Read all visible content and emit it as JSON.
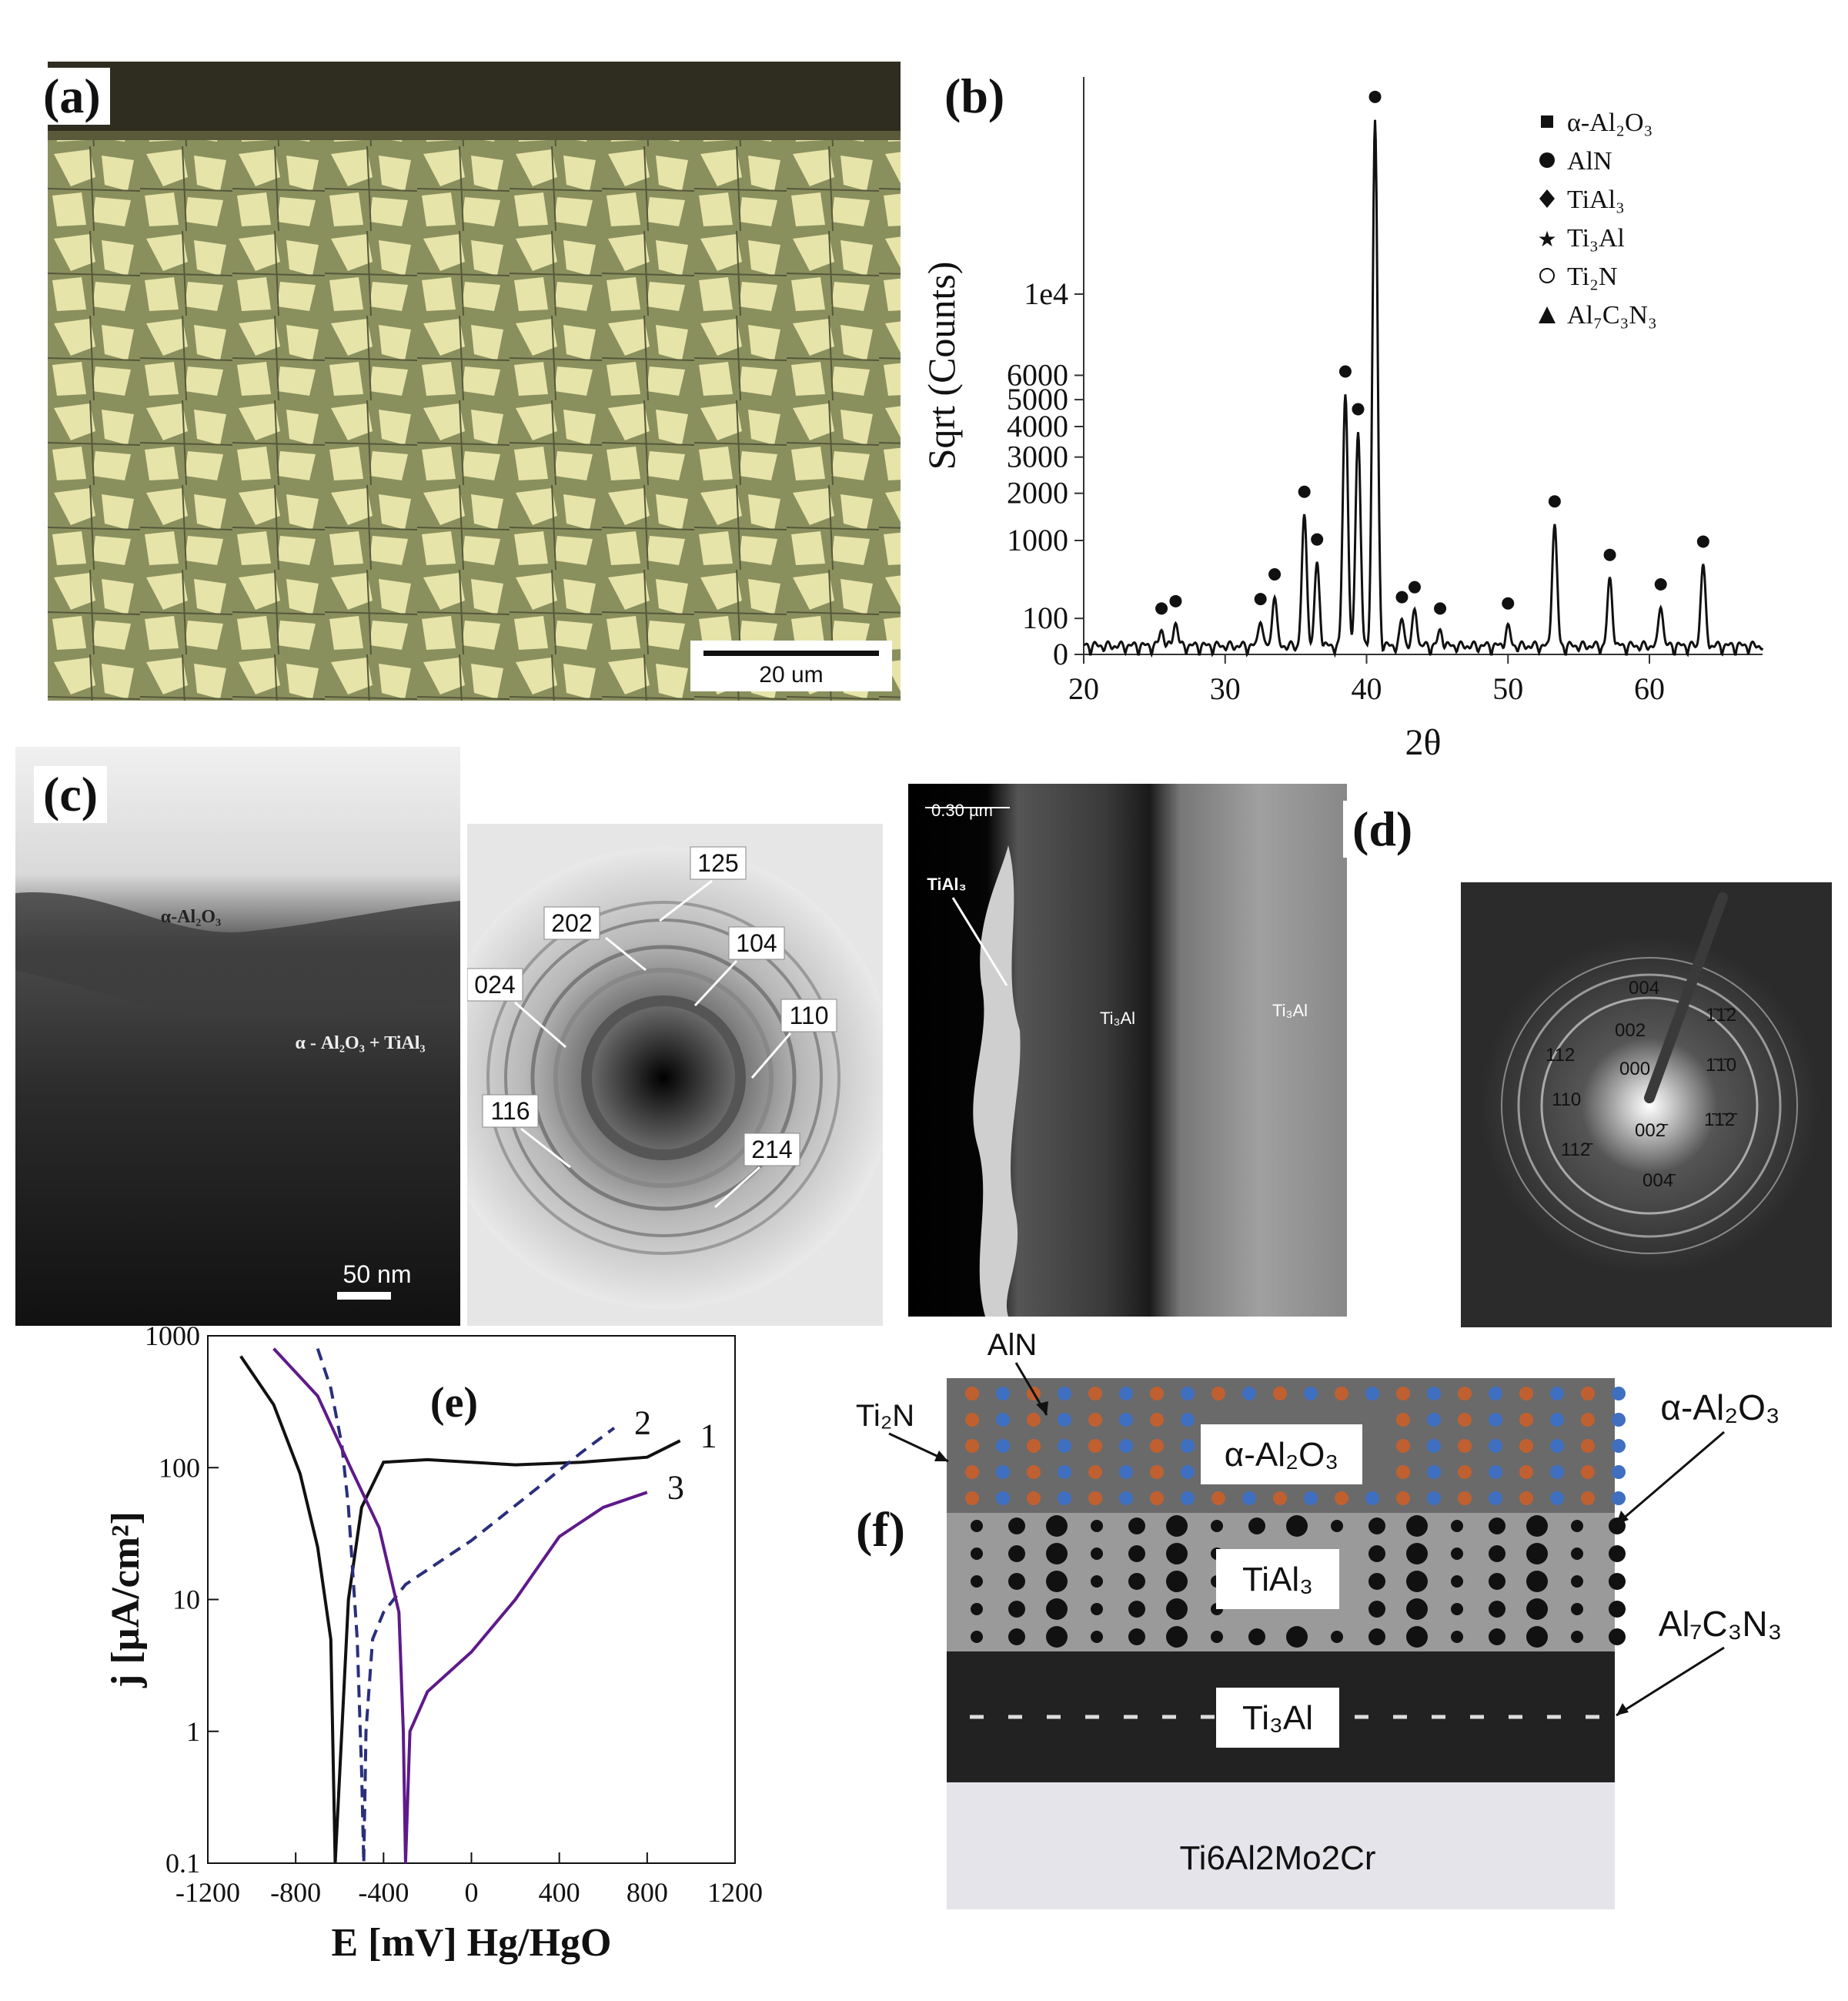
{
  "panels": {
    "a": {
      "label": "(a)",
      "scale_bar": "20 um"
    },
    "b": {
      "label": "(b)"
    },
    "c": {
      "label": "(c)",
      "layer_top": "α-Al₂O₃",
      "layer_mix": "α - Al₂O₃ + TiAl₃",
      "scale_bar": "50 nm",
      "rings": [
        "125",
        "202",
        "104",
        "024",
        "110",
        "116",
        "214"
      ]
    },
    "d": {
      "label": "(d)",
      "scale_bar": "0.30 µm",
      "phase_left": "TiAl₃",
      "phase_mid": "Ti₃Al",
      "phase_right": "Ti₃Al",
      "spots": [
        "004",
        "002",
        "000",
        "110",
        "112",
        "112̄",
        "002̄",
        "004̄",
        "1̄1̄2",
        "1̄1̄0",
        "1̄1̄2̄"
      ]
    },
    "e": {
      "label": "(e)"
    },
    "f": {
      "label": "(f)",
      "layers": [
        "α-Al₂O₃",
        "TiAl₃",
        "Ti₃Al",
        "Ti6Al2Mo2Cr"
      ],
      "callouts": {
        "ain": "AlN",
        "ti2n": "Ti₂N",
        "alumina": "α-Al₂O₃",
        "carbonitride": "Al₇C₃N₃"
      }
    }
  },
  "chart_data": [
    {
      "type": "line",
      "panel": "b",
      "xlabel": "2θ",
      "ylabel": "Sqrt (Counts)",
      "xlim": [
        20,
        68
      ],
      "x_ticks": [
        20,
        30,
        40,
        50,
        60
      ],
      "y_ticks": [
        "0",
        "100",
        "1000",
        "2000",
        "3000",
        "4000",
        "5000",
        "6000",
        "1e4"
      ],
      "legend": [
        "α-Al₂O₃",
        "AlN",
        "TiAl₃",
        "Ti₃Al",
        "Ti₂N",
        "Al₇C₃N₃"
      ],
      "legend_position": "top-right",
      "peaks": [
        {
          "x": 25.5,
          "y": 40
        },
        {
          "x": 26.5,
          "y": 70
        },
        {
          "x": 32.5,
          "y": 80
        },
        {
          "x": 33.5,
          "y": 250
        },
        {
          "x": 35.6,
          "y": 1500
        },
        {
          "x": 36.5,
          "y": 650
        },
        {
          "x": 38.5,
          "y": 5200
        },
        {
          "x": 39.4,
          "y": 3800
        },
        {
          "x": 40.6,
          "y": 22000
        },
        {
          "x": 42.5,
          "y": 90
        },
        {
          "x": 43.4,
          "y": 150
        },
        {
          "x": 45.2,
          "y": 40
        },
        {
          "x": 50.0,
          "y": 60
        },
        {
          "x": 53.3,
          "y": 1300
        },
        {
          "x": 57.2,
          "y": 450
        },
        {
          "x": 60.8,
          "y": 170
        },
        {
          "x": 63.8,
          "y": 620
        }
      ]
    },
    {
      "type": "line",
      "panel": "e",
      "xlabel": "E [mV] Hg/HgO",
      "ylabel": "j [µA/cm²]",
      "xlim": [
        -1200,
        1200
      ],
      "ylim": [
        0.1,
        1000
      ],
      "x_ticks": [
        "-1200",
        "-800",
        "-400",
        "0",
        "400",
        "800",
        "1200"
      ],
      "y_ticks": [
        "0.1",
        "1",
        "10",
        "100",
        "1000"
      ],
      "y_scale": "log",
      "series": [
        {
          "name": "1",
          "color": "#111111",
          "dash": false,
          "points": [
            [
              -1050,
              700
            ],
            [
              -900,
              300
            ],
            [
              -780,
              90
            ],
            [
              -700,
              25
            ],
            [
              -640,
              5
            ],
            [
              -620,
              0.1
            ],
            [
              -590,
              1
            ],
            [
              -560,
              10
            ],
            [
              -500,
              50
            ],
            [
              -400,
              110
            ],
            [
              -200,
              115
            ],
            [
              200,
              105
            ],
            [
              500,
              110
            ],
            [
              800,
              120
            ],
            [
              950,
              160
            ]
          ]
        },
        {
          "name": "2",
          "color": "#2a2f7a",
          "dash": true,
          "points": [
            [
              -700,
              800
            ],
            [
              -640,
              400
            ],
            [
              -590,
              150
            ],
            [
              -560,
              50
            ],
            [
              -520,
              5
            ],
            [
              -500,
              0.5
            ],
            [
              -490,
              0.1
            ],
            [
              -480,
              1
            ],
            [
              -450,
              5
            ],
            [
              -400,
              8
            ],
            [
              -300,
              13
            ],
            [
              0,
              28
            ],
            [
              300,
              70
            ],
            [
              500,
              130
            ],
            [
              650,
              200
            ]
          ]
        },
        {
          "name": "3",
          "color": "#5e1a8a",
          "dash": false,
          "points": [
            [
              -900,
              800
            ],
            [
              -700,
              350
            ],
            [
              -550,
              100
            ],
            [
              -420,
              35
            ],
            [
              -330,
              8
            ],
            [
              -310,
              1
            ],
            [
              -300,
              0.1
            ],
            [
              -280,
              1
            ],
            [
              -200,
              2
            ],
            [
              0,
              4
            ],
            [
              200,
              10
            ],
            [
              400,
              30
            ],
            [
              600,
              50
            ],
            [
              800,
              65
            ]
          ]
        }
      ]
    }
  ]
}
